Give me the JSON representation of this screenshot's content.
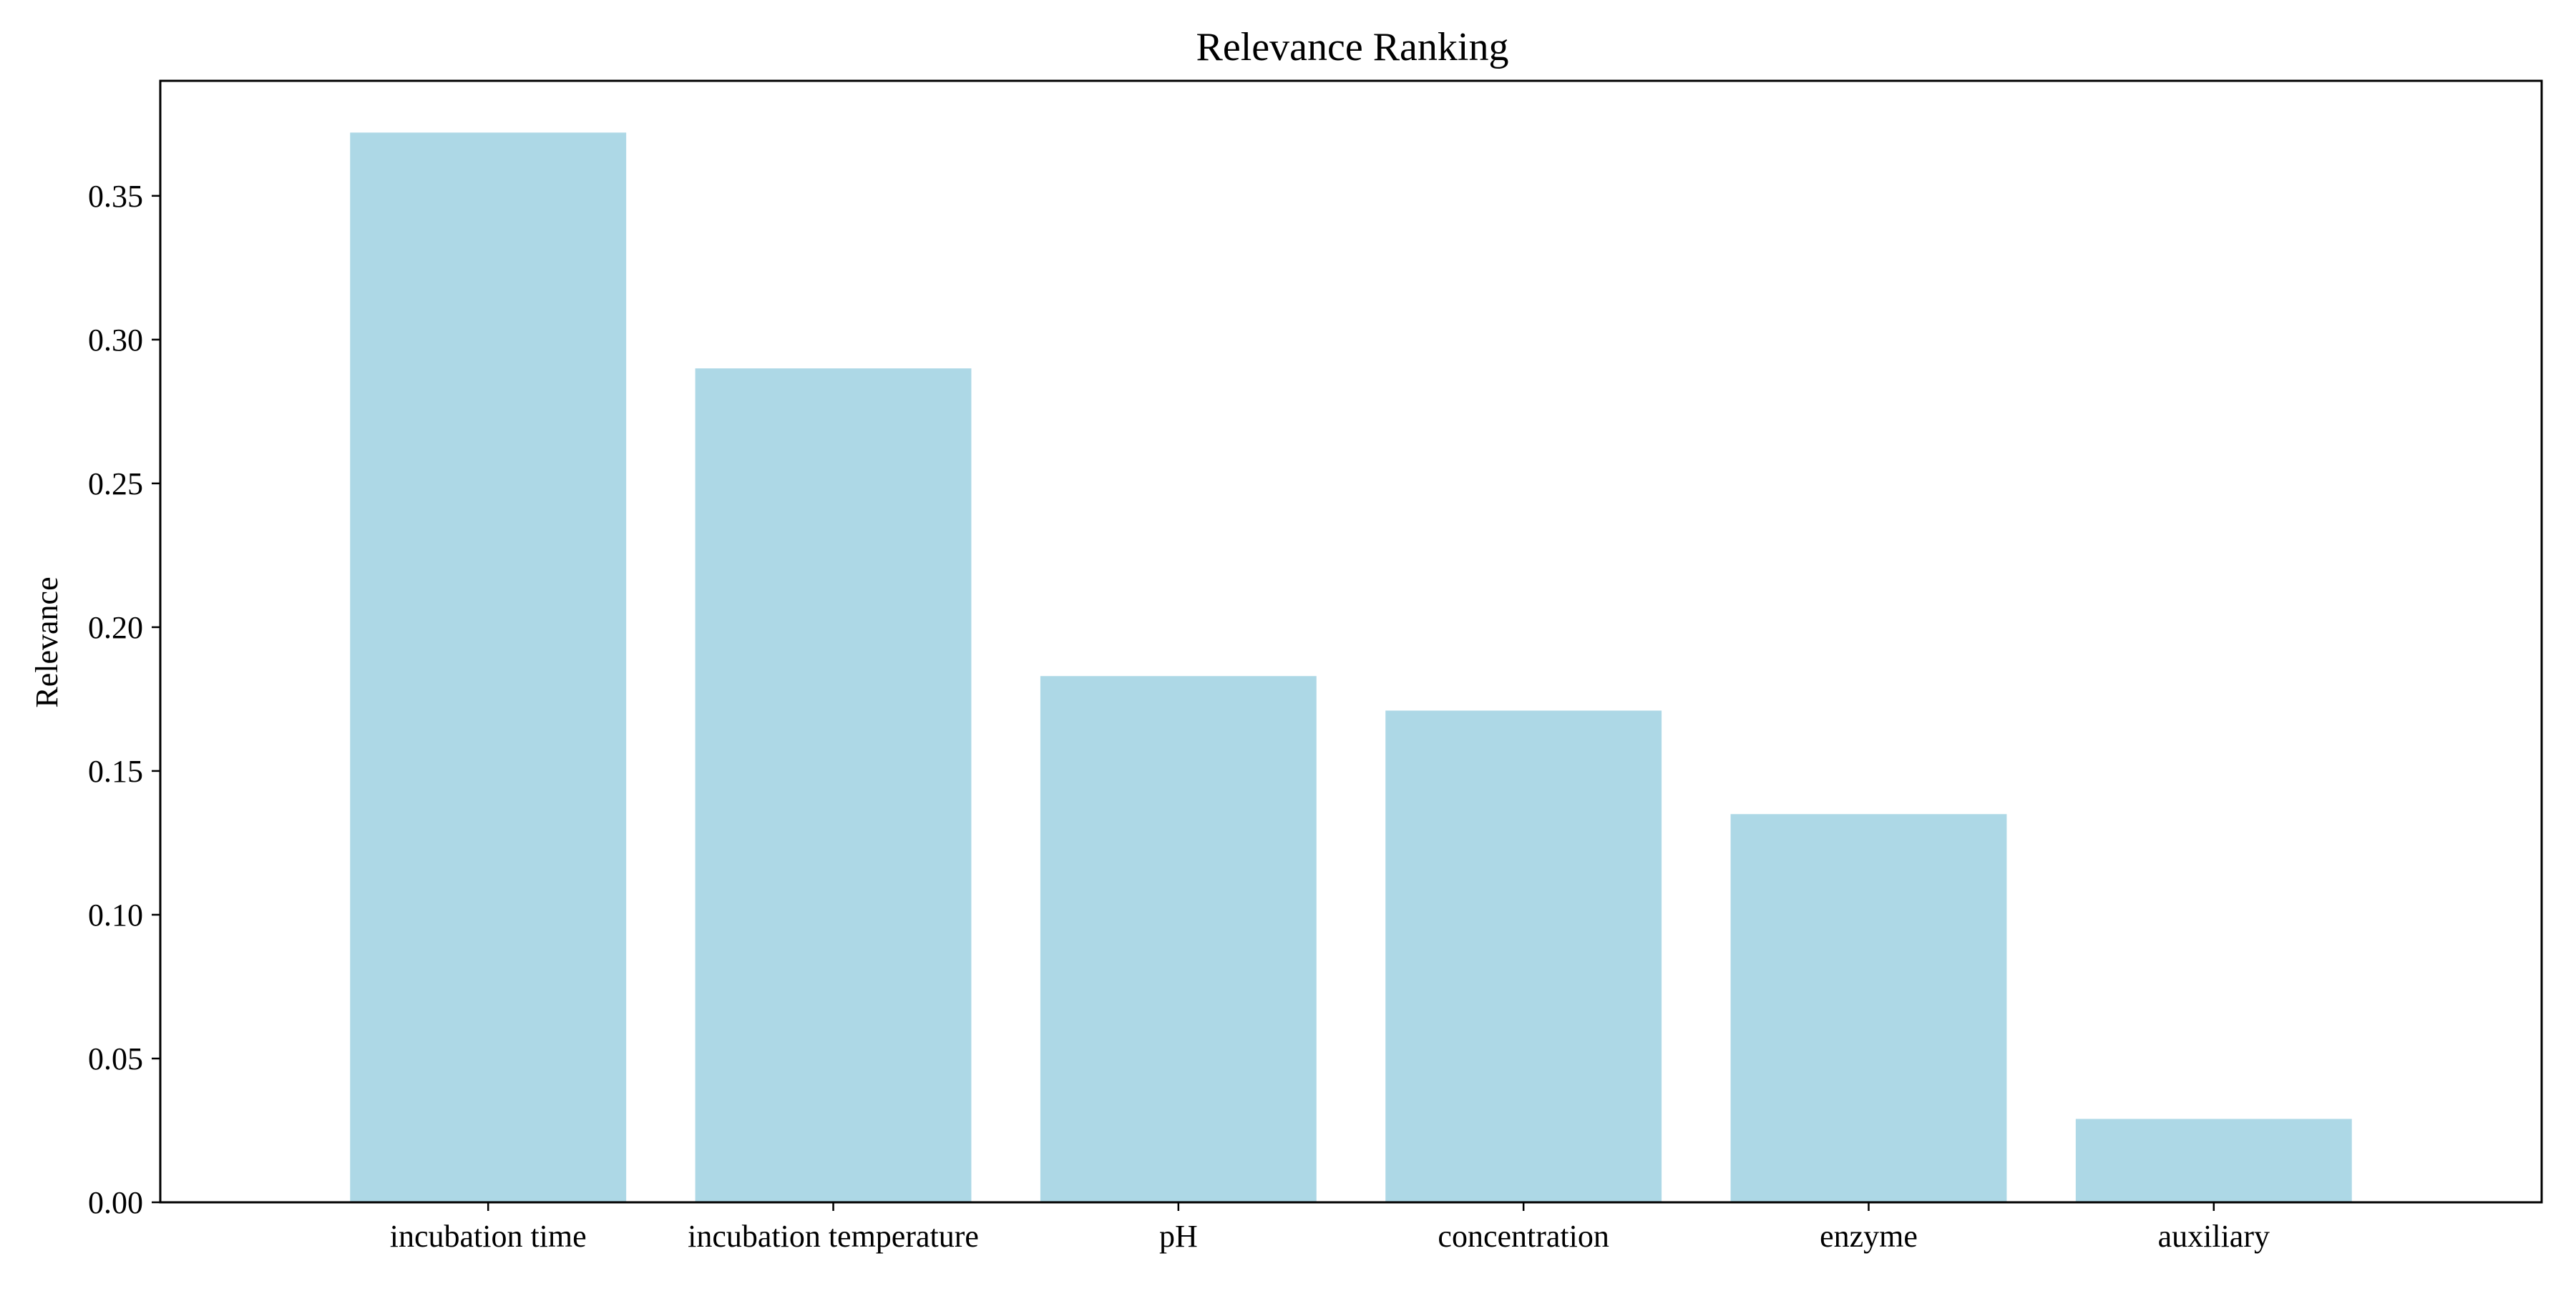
{
  "chart_data": {
    "type": "bar",
    "title": "Relevance Ranking",
    "xlabel": "",
    "ylabel": "Relevance",
    "categories": [
      "incubation time",
      "incubation temperature",
      "pH",
      "concentration",
      "enzyme",
      "auxiliary"
    ],
    "values": [
      0.372,
      0.29,
      0.183,
      0.171,
      0.135,
      0.029
    ],
    "ylim": [
      0,
      0.39
    ],
    "yticks": [
      0.0,
      0.05,
      0.1,
      0.15,
      0.2,
      0.25,
      0.3,
      0.35
    ],
    "ytick_labels": [
      "0.00",
      "0.05",
      "0.10",
      "0.15",
      "0.20",
      "0.25",
      "0.30",
      "0.35"
    ],
    "grid": false,
    "legend": "none",
    "colors": {
      "bar": "#add8e6",
      "axis": "#000000"
    }
  }
}
